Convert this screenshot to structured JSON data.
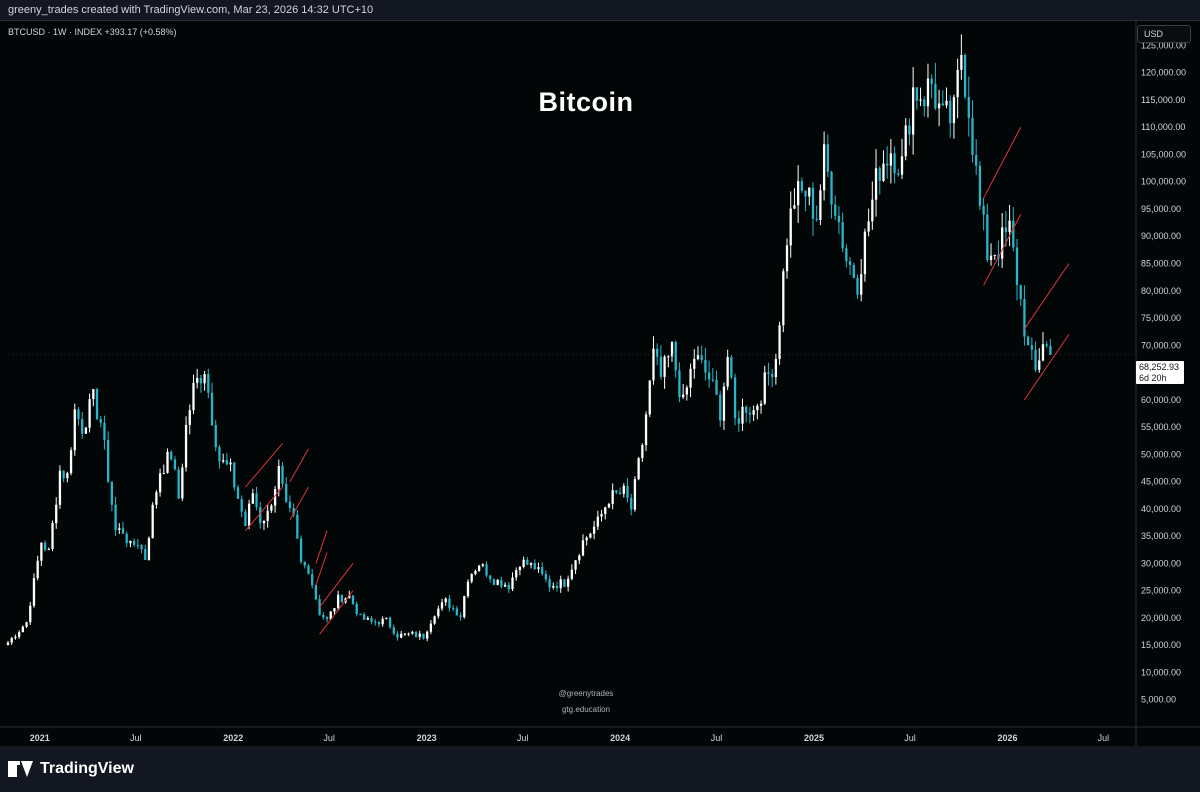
{
  "header": {
    "attribution": "greeny_trades created with TradingView.com, Mar 23, 2026 14:32 UTC+10"
  },
  "symbol_info": "BTCUSD · 1W · INDEX  +393.17 (+0.58%)",
  "currency": "USD",
  "last_price": {
    "value": "68,252.93",
    "countdown": "6d 20h"
  },
  "watermark": {
    "handle": "@greenytrades",
    "site": "gtg.education"
  },
  "brand": "TradingView",
  "colors": {
    "background": "#030606",
    "frame": "#131722",
    "up_candle": "#ffffff",
    "down_candle": "#29b6c9",
    "trend_lines": "#e0323a",
    "axis_text": "#d1d4dc"
  },
  "chart_data": {
    "type": "candlestick",
    "title": "Bitcoin",
    "timeframe": "1W",
    "ylim": [
      0,
      128000
    ],
    "y_ticks": [
      5000,
      10000,
      15000,
      20000,
      25000,
      30000,
      35000,
      40000,
      45000,
      50000,
      55000,
      60000,
      65000,
      70000,
      75000,
      80000,
      85000,
      90000,
      95000,
      100000,
      105000,
      110000,
      115000,
      120000,
      125000
    ],
    "y_tick_labels": [
      "5,000.00",
      "10,000.00",
      "15,000.00",
      "20,000.00",
      "25,000.00",
      "30,000.00",
      "35,000.00",
      "40,000.00",
      "45,000.00",
      "50,000.00",
      "55,000.00",
      "60,000.00",
      "65,000.00",
      "70,000.00",
      "75,000.00",
      "80,000.00",
      "85,000.00",
      "90,000.00",
      "95,000.00",
      "100,000.00",
      "105,000.00",
      "110,000.00",
      "115,000.00",
      "120,000.00",
      "125,000.00"
    ],
    "x_ticks": [
      {
        "date": "2021-01-01",
        "label": "2021",
        "bold": true
      },
      {
        "date": "2021-07-01",
        "label": "Jul",
        "bold": false
      },
      {
        "date": "2022-01-01",
        "label": "2022",
        "bold": true
      },
      {
        "date": "2022-07-01",
        "label": "Jul",
        "bold": false
      },
      {
        "date": "2023-01-01",
        "label": "2023",
        "bold": true
      },
      {
        "date": "2023-07-01",
        "label": "Jul",
        "bold": false
      },
      {
        "date": "2024-01-01",
        "label": "2024",
        "bold": true
      },
      {
        "date": "2024-07-01",
        "label": "Jul",
        "bold": false
      },
      {
        "date": "2025-01-01",
        "label": "2025",
        "bold": true
      },
      {
        "date": "2025-07-01",
        "label": "Jul",
        "bold": false
      },
      {
        "date": "2026-01-01",
        "label": "2026",
        "bold": true
      },
      {
        "date": "2026-07-01",
        "label": "Jul",
        "bold": false
      }
    ],
    "x_range": [
      "2020-11-02",
      "2026-08-24"
    ],
    "closes": [
      [
        "2020-11-02",
        15500
      ],
      [
        "2020-12-07",
        19200
      ],
      [
        "2021-01-04",
        34000
      ],
      [
        "2021-01-18",
        32000
      ],
      [
        "2021-02-08",
        47000
      ],
      [
        "2021-02-22",
        46000
      ],
      [
        "2021-03-08",
        58000
      ],
      [
        "2021-03-22",
        55000
      ],
      [
        "2021-04-12",
        60000
      ],
      [
        "2021-04-26",
        56000
      ],
      [
        "2021-05-10",
        46000
      ],
      [
        "2021-05-24",
        36000
      ],
      [
        "2021-06-07",
        36000
      ],
      [
        "2021-06-21",
        33000
      ],
      [
        "2021-07-05",
        34000
      ],
      [
        "2021-07-19",
        31000
      ],
      [
        "2021-08-02",
        40000
      ],
      [
        "2021-08-16",
        47000
      ],
      [
        "2021-09-06",
        50000
      ],
      [
        "2021-09-20",
        42000
      ],
      [
        "2021-10-04",
        55000
      ],
      [
        "2021-10-18",
        62000
      ],
      [
        "2021-11-08",
        66000
      ],
      [
        "2021-11-22",
        57000
      ],
      [
        "2021-12-06",
        49000
      ],
      [
        "2021-12-27",
        47000
      ],
      [
        "2022-01-10",
        42000
      ],
      [
        "2022-01-24",
        37000
      ],
      [
        "2022-02-07",
        43000
      ],
      [
        "2022-02-21",
        38000
      ],
      [
        "2022-03-07",
        39000
      ],
      [
        "2022-03-28",
        47000
      ],
      [
        "2022-04-11",
        40000
      ],
      [
        "2022-04-25",
        38000
      ],
      [
        "2022-05-09",
        30000
      ],
      [
        "2022-05-23",
        29000
      ],
      [
        "2022-06-13",
        21000
      ],
      [
        "2022-06-27",
        19500
      ],
      [
        "2022-07-18",
        23500
      ],
      [
        "2022-08-08",
        24000
      ],
      [
        "2022-08-29",
        20000
      ],
      [
        "2022-09-19",
        19200
      ],
      [
        "2022-10-17",
        19500
      ],
      [
        "2022-11-07",
        16800
      ],
      [
        "2022-12-05",
        17000
      ],
      [
        "2022-12-26",
        16600
      ],
      [
        "2023-01-16",
        21000
      ],
      [
        "2023-02-06",
        23000
      ],
      [
        "2023-03-06",
        20500
      ],
      [
        "2023-03-20",
        27500
      ],
      [
        "2023-04-10",
        30000
      ],
      [
        "2023-05-08",
        27000
      ],
      [
        "2023-06-05",
        26000
      ],
      [
        "2023-06-26",
        30400
      ],
      [
        "2023-07-24",
        29300
      ],
      [
        "2023-08-21",
        26000
      ],
      [
        "2023-09-18",
        26500
      ],
      [
        "2023-10-23",
        34000
      ],
      [
        "2023-11-20",
        37500
      ],
      [
        "2023-12-11",
        42000
      ],
      [
        "2024-01-08",
        43000
      ],
      [
        "2024-01-22",
        40000
      ],
      [
        "2024-02-12",
        52000
      ],
      [
        "2024-03-04",
        68000
      ],
      [
        "2024-03-18",
        64000
      ],
      [
        "2024-04-08",
        69000
      ],
      [
        "2024-04-29",
        59000
      ],
      [
        "2024-05-20",
        68000
      ],
      [
        "2024-06-17",
        64000
      ],
      [
        "2024-07-08",
        58000
      ],
      [
        "2024-07-22",
        68000
      ],
      [
        "2024-08-05",
        56000
      ],
      [
        "2024-08-26",
        59000
      ],
      [
        "2024-09-09",
        58000
      ],
      [
        "2024-09-30",
        63000
      ],
      [
        "2024-10-21",
        68000
      ],
      [
        "2024-11-11",
        90000
      ],
      [
        "2024-11-25",
        97000
      ],
      [
        "2024-12-16",
        98000
      ],
      [
        "2025-01-06",
        94000
      ],
      [
        "2025-01-20",
        104000
      ],
      [
        "2025-02-10",
        96000
      ],
      [
        "2025-03-03",
        86000
      ],
      [
        "2025-03-24",
        82000
      ],
      [
        "2025-04-14",
        93000
      ],
      [
        "2025-05-05",
        103000
      ],
      [
        "2025-05-26",
        106000
      ],
      [
        "2025-06-16",
        103000
      ],
      [
        "2025-07-07",
        117000
      ],
      [
        "2025-07-28",
        116000
      ],
      [
        "2025-08-11",
        118000
      ],
      [
        "2025-09-01",
        111000
      ],
      [
        "2025-09-22",
        112000
      ],
      [
        "2025-10-06",
        124000
      ],
      [
        "2025-10-20",
        114000
      ],
      [
        "2025-11-10",
        95000
      ],
      [
        "2025-11-24",
        87000
      ],
      [
        "2025-12-15",
        88000
      ],
      [
        "2026-01-05",
        91000
      ],
      [
        "2026-01-26",
        78000
      ],
      [
        "2026-02-09",
        69000
      ],
      [
        "2026-02-23",
        65000
      ],
      [
        "2026-03-09",
        71000
      ],
      [
        "2026-03-23",
        68253
      ]
    ],
    "annotations": [
      {
        "type": "channel",
        "from": [
          "2022-01-24",
          36000
        ],
        "to": [
          "2022-04-04",
          44000
        ],
        "offset": 8000
      },
      {
        "type": "channel",
        "from": [
          "2022-04-18",
          38000
        ],
        "to": [
          "2022-05-23",
          44000
        ],
        "offset": 7000
      },
      {
        "type": "channel",
        "from": [
          "2022-06-06",
          26000
        ],
        "to": [
          "2022-06-27",
          32000
        ],
        "offset": 4000
      },
      {
        "type": "channel",
        "from": [
          "2022-06-13",
          17000
        ],
        "to": [
          "2022-08-15",
          25000
        ],
        "offset": 5000
      },
      {
        "type": "channel",
        "from": [
          "2025-11-17",
          81000
        ],
        "to": [
          "2026-01-26",
          94000
        ],
        "offset": 16000
      },
      {
        "type": "channel",
        "from": [
          "2026-02-02",
          60000
        ],
        "to": [
          "2026-04-27",
          72000
        ],
        "offset": 13000
      }
    ]
  }
}
